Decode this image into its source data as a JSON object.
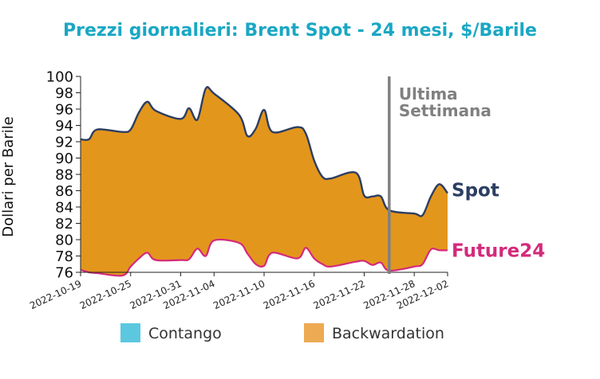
{
  "chart_data": {
    "type": "area",
    "title": "Prezzi giornalieri: Brent Spot - 24 mesi, $/Barile",
    "ylabel": "Dollari per Barile",
    "xlabel": "",
    "ylim": [
      76,
      100
    ],
    "yticks": [
      76,
      78,
      80,
      82,
      84,
      86,
      88,
      90,
      92,
      94,
      96,
      98,
      100
    ],
    "xticks": [
      "2022-10-19",
      "2022-10-25",
      "2022-10-31",
      "2022-11-04",
      "2022-11-10",
      "2022-11-16",
      "2022-11-22",
      "2022-11-28",
      "2022-12-02"
    ],
    "x": [
      "2022-10-19",
      "2022-10-20",
      "2022-10-21",
      "2022-10-24",
      "2022-10-25",
      "2022-10-26",
      "2022-10-27",
      "2022-10-28",
      "2022-10-31",
      "2022-11-01",
      "2022-11-02",
      "2022-11-03",
      "2022-11-04",
      "2022-11-07",
      "2022-11-08",
      "2022-11-09",
      "2022-11-10",
      "2022-11-11",
      "2022-11-14",
      "2022-11-15",
      "2022-11-16",
      "2022-11-17",
      "2022-11-18",
      "2022-11-21",
      "2022-11-22",
      "2022-11-23",
      "2022-11-24",
      "2022-11-25",
      "2022-11-28",
      "2022-11-29",
      "2022-11-30",
      "2022-12-01",
      "2022-12-02"
    ],
    "series": [
      {
        "name": "Spot",
        "color": "#2c3e62",
        "values": [
          92.3,
          92.3,
          93.5,
          93.2,
          93.5,
          95.6,
          96.9,
          95.8,
          94.8,
          96.1,
          94.7,
          98.5,
          97.9,
          95.3,
          92.7,
          93.6,
          95.9,
          93.2,
          93.8,
          93.0,
          89.7,
          87.7,
          87.5,
          88.2,
          85.4,
          85.3,
          85.3,
          83.6,
          83.2,
          83.0,
          85.3,
          86.8,
          85.7
        ]
      },
      {
        "name": "Future24",
        "color": "#d42a7b",
        "values": [
          76.3,
          76.0,
          75.9,
          75.6,
          76.7,
          77.7,
          78.4,
          77.5,
          77.5,
          77.6,
          78.9,
          78.0,
          79.9,
          79.6,
          78.3,
          77.0,
          76.8,
          78.4,
          77.7,
          79.0,
          77.7,
          77.0,
          76.7,
          77.3,
          77.4,
          76.9,
          77.2,
          76.2,
          76.7,
          77.0,
          78.8,
          78.7,
          78.7
        ]
      }
    ],
    "annotation": {
      "text_line1": "Ultima",
      "text_line2": "Settimana",
      "x": "2022-11-25",
      "color": "#808080"
    },
    "area_color": "#e3961c",
    "legend": {
      "placement": "bottom",
      "items": [
        {
          "label": "Contango",
          "color": "#5bc8e0"
        },
        {
          "label": "Backwardation",
          "color": "#edaa52"
        }
      ]
    },
    "grid": false
  }
}
